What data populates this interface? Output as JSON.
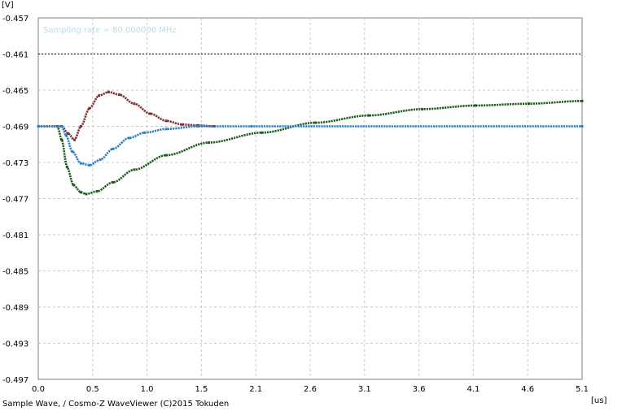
{
  "chart_data": {
    "type": "scatter",
    "title": "",
    "sampling_rate_text": "Sampling rate = 80.000000 MHz",
    "ylabel": "[V]",
    "xlabel": "[us]",
    "footer": "Sample Wave, / Cosmo-Z WaveViewer (C)2015 Tokuden",
    "xlim": [
      0.0,
      5.1
    ],
    "ylim": [
      -0.497,
      -0.457
    ],
    "x_ticks": [
      "0.0",
      "0.5",
      "1.0",
      "1.5",
      "2.1",
      "2.6",
      "3.1",
      "3.6",
      "4.1",
      "4.6",
      "5.1"
    ],
    "y_ticks": [
      "-0.457",
      "-0.461",
      "-0.465",
      "-0.469",
      "-0.473",
      "-0.477",
      "-0.481",
      "-0.485",
      "-0.489",
      "-0.493",
      "-0.497"
    ],
    "threshold_line": -0.461,
    "grid": true,
    "sampling_rate_mhz": 80,
    "series": [
      {
        "color": "#1e5d1e",
        "x_end": 5.1,
        "points": [
          [
            0.0,
            -0.469
          ],
          [
            0.18,
            -0.469
          ],
          [
            0.22,
            -0.4705
          ],
          [
            0.27,
            -0.4735
          ],
          [
            0.33,
            -0.4755
          ],
          [
            0.4,
            -0.4763
          ],
          [
            0.45,
            -0.4765
          ],
          [
            0.55,
            -0.4762
          ],
          [
            0.7,
            -0.4752
          ],
          [
            0.9,
            -0.4738
          ],
          [
            1.2,
            -0.4722
          ],
          [
            1.6,
            -0.4708
          ],
          [
            2.1,
            -0.4697
          ],
          [
            2.6,
            -0.4686
          ],
          [
            3.1,
            -0.4678
          ],
          [
            3.6,
            -0.4671
          ],
          [
            4.1,
            -0.4667
          ],
          [
            4.6,
            -0.4665
          ],
          [
            5.1,
            -0.4662
          ]
        ]
      },
      {
        "color": "#7a3030",
        "x_end": 1.65,
        "points": [
          [
            0.0,
            -0.469
          ],
          [
            0.22,
            -0.469
          ],
          [
            0.28,
            -0.4698
          ],
          [
            0.34,
            -0.4705
          ],
          [
            0.4,
            -0.469
          ],
          [
            0.48,
            -0.467
          ],
          [
            0.57,
            -0.4656
          ],
          [
            0.66,
            -0.4652
          ],
          [
            0.76,
            -0.4655
          ],
          [
            0.9,
            -0.4665
          ],
          [
            1.05,
            -0.4676
          ],
          [
            1.2,
            -0.4684
          ],
          [
            1.35,
            -0.4688
          ],
          [
            1.5,
            -0.4689
          ],
          [
            1.65,
            -0.469
          ]
        ]
      },
      {
        "color": "#2f7fc0",
        "x_end": 5.1,
        "points": [
          [
            0.0,
            -0.469
          ],
          [
            0.22,
            -0.469
          ],
          [
            0.26,
            -0.47
          ],
          [
            0.32,
            -0.4718
          ],
          [
            0.4,
            -0.4731
          ],
          [
            0.48,
            -0.4733
          ],
          [
            0.58,
            -0.4727
          ],
          [
            0.7,
            -0.4715
          ],
          [
            0.85,
            -0.4703
          ],
          [
            1.0,
            -0.4697
          ],
          [
            1.2,
            -0.4693
          ],
          [
            1.5,
            -0.469
          ],
          [
            2.0,
            -0.469
          ],
          [
            5.1,
            -0.469
          ]
        ]
      }
    ]
  }
}
